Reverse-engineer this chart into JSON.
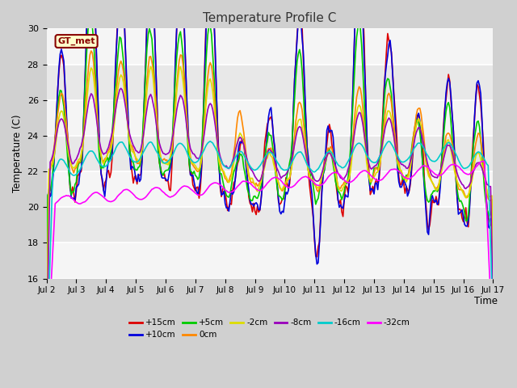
{
  "title": "Temperature Profile C",
  "xlabel": "Time",
  "ylabel": "Temperature (C)",
  "ylim": [
    16,
    30
  ],
  "xlim": [
    0,
    360
  ],
  "fig_bg": "#d0d0d0",
  "plot_bg": "#e8e8e8",
  "xtick_labels": [
    "Jul 2",
    "Jul 3",
    "Jul 4",
    "Jul 5",
    "Jul 6",
    "Jul 7",
    "Jul 8",
    "Jul 9",
    "Jul 10",
    "Jul 11",
    "Jul 12",
    "Jul 13",
    "Jul 14",
    "Jul 15",
    "Jul 16",
    "Jul 17"
  ],
  "xtick_positions": [
    0,
    24,
    48,
    72,
    96,
    120,
    144,
    168,
    192,
    216,
    240,
    264,
    288,
    312,
    336,
    360
  ],
  "ytick_positions": [
    16,
    18,
    20,
    22,
    24,
    26,
    28,
    30
  ],
  "series": [
    {
      "label": "+15cm",
      "color": "#dd0000",
      "lw": 1.2
    },
    {
      "label": "+10cm",
      "color": "#0000dd",
      "lw": 1.2
    },
    {
      "label": "+5cm",
      "color": "#00cc00",
      "lw": 1.2
    },
    {
      "label": "0cm",
      "color": "#ff8800",
      "lw": 1.2
    },
    {
      "label": "-2cm",
      "color": "#dddd00",
      "lw": 1.2
    },
    {
      "label": "-8cm",
      "color": "#9900bb",
      "lw": 1.2
    },
    {
      "label": "-16cm",
      "color": "#00cccc",
      "lw": 1.2
    },
    {
      "label": "-32cm",
      "color": "#ff00ff",
      "lw": 1.2
    }
  ],
  "gt_met_box_color": "#ffffcc",
  "gt_met_border_color": "#880000",
  "gt_met_text_color": "#880000",
  "legend_ncol": 6
}
